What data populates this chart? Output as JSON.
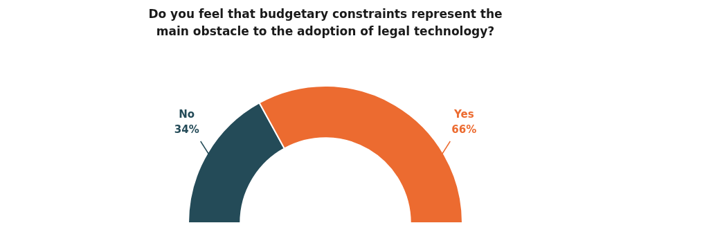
{
  "chart_data": {
    "type": "donut",
    "title": "Do you feel that budgetary constraints represent the main obstacle to the adoption of legal technology?",
    "categories": [
      "No",
      "Yes"
    ],
    "values": [
      34,
      66
    ],
    "colors": [
      "#244b58",
      "#ec6b30"
    ],
    "value_labels": [
      "34%",
      "66%"
    ],
    "legend": false
  }
}
